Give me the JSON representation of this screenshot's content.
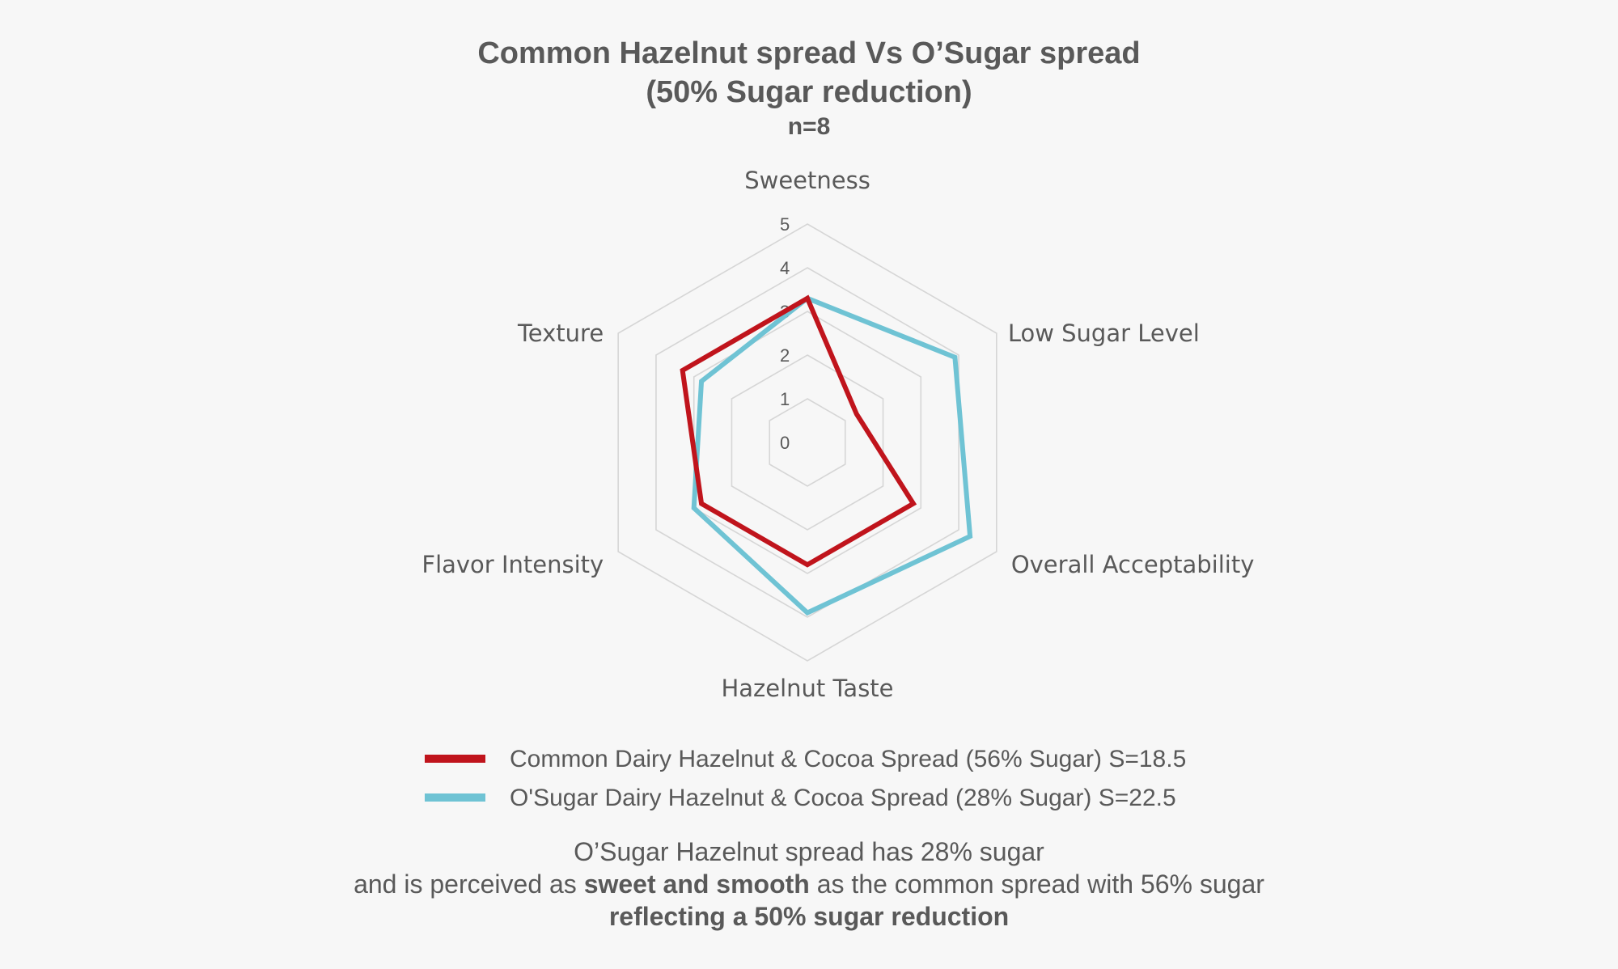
{
  "chart_data": {
    "type": "radar",
    "title": "Common Hazelnut spread Vs O’Sugar spread",
    "subtitle": "(50% Sugar reduction)",
    "sample_size": "n=8",
    "axes": [
      "Sweetness",
      "Low Sugar Level",
      "Overall Acceptability",
      "Hazelnut Taste",
      "Flavor Intensity",
      "Texture"
    ],
    "rlim": [
      0,
      5
    ],
    "ticks": [
      "0",
      "1",
      "2",
      "3",
      "4",
      "5"
    ],
    "grid": true,
    "series": [
      {
        "name": "Common Dairy Hazelnut & Cocoa Spread (56% Sugar)  S=18.5",
        "color": "#c0141c",
        "values": [
          3.3,
          1.3,
          2.8,
          2.8,
          2.8,
          3.3
        ]
      },
      {
        "name": "O'Sugar Dairy Hazelnut & Cocoa Spread (28% Sugar) S=22.5",
        "color": "#6fc3d4",
        "values": [
          3.3,
          3.9,
          4.3,
          3.9,
          3.0,
          2.8
        ]
      }
    ],
    "legend_position": "bottom"
  },
  "note": {
    "line1": "O’Sugar Hazelnut spread has 28% sugar",
    "line2_pre": "and is perceived as ",
    "line2_bold": "sweet and smooth",
    "line2_post": " as the common spread with 56% sugar",
    "line3": "reflecting a 50% sugar reduction"
  }
}
